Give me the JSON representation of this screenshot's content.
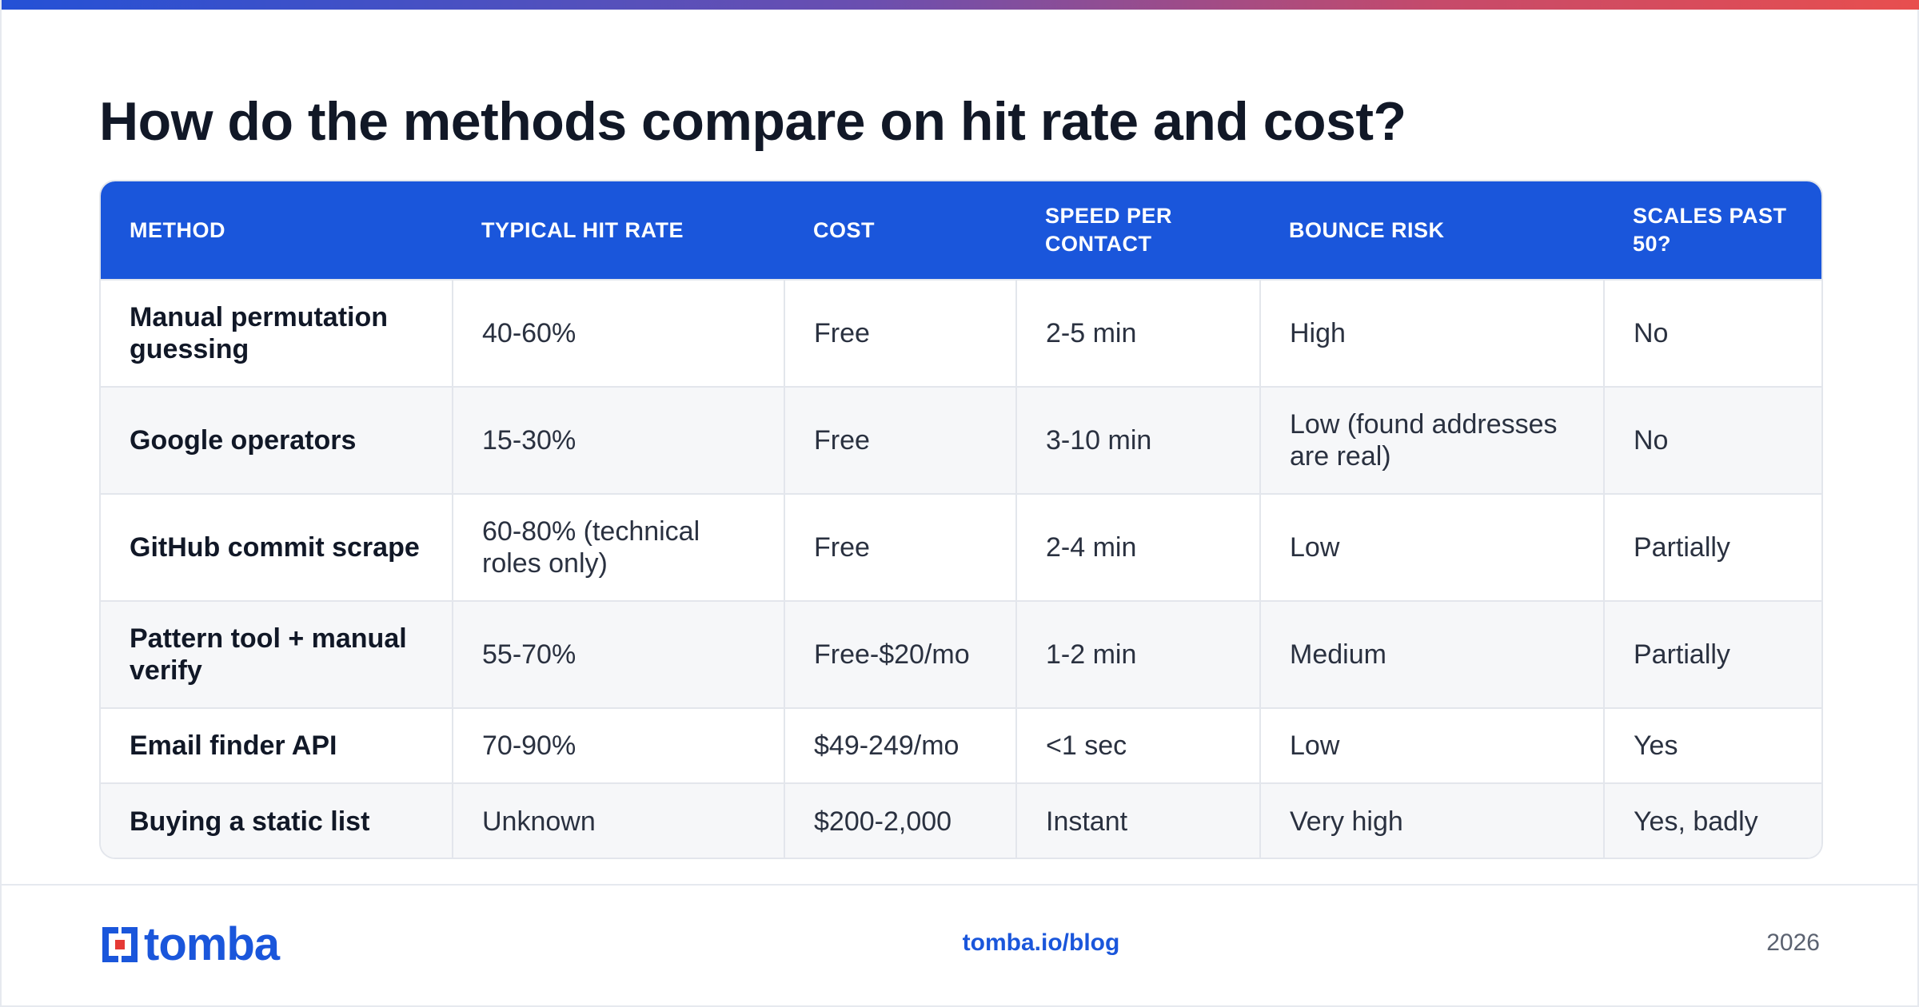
{
  "title": "How do the methods compare on hit rate and cost?",
  "table": {
    "headers": [
      "METHOD",
      "TYPICAL HIT RATE",
      "COST",
      "SPEED PER CONTACT",
      "BOUNCE RISK",
      "SCALES PAST 50?"
    ],
    "rows": [
      [
        "Manual permutation guessing",
        "40-60%",
        "Free",
        "2-5 min",
        "High",
        "No"
      ],
      [
        "Google operators",
        "15-30%",
        "Free",
        "3-10 min",
        "Low (found addresses are real)",
        "No"
      ],
      [
        "GitHub commit scrape",
        "60-80% (technical roles only)",
        "Free",
        "2-4 min",
        "Low",
        "Partially"
      ],
      [
        "Pattern tool + manual verify",
        "55-70%",
        "Free-$20/mo",
        "1-2 min",
        "Medium",
        "Partially"
      ],
      [
        "Email finder API",
        "70-90%",
        "$49-249/mo",
        "<1 sec",
        "Low",
        "Yes"
      ],
      [
        "Buying a static list",
        "Unknown",
        "$200-2,000",
        "Instant",
        "Very high",
        "Yes, badly"
      ]
    ]
  },
  "footer": {
    "logo_text": "tomba",
    "url": "tomba.io/blog",
    "year": "2026"
  },
  "colors": {
    "accent": "#1a56db",
    "logo_red": "#e53935",
    "title": "#111827"
  }
}
